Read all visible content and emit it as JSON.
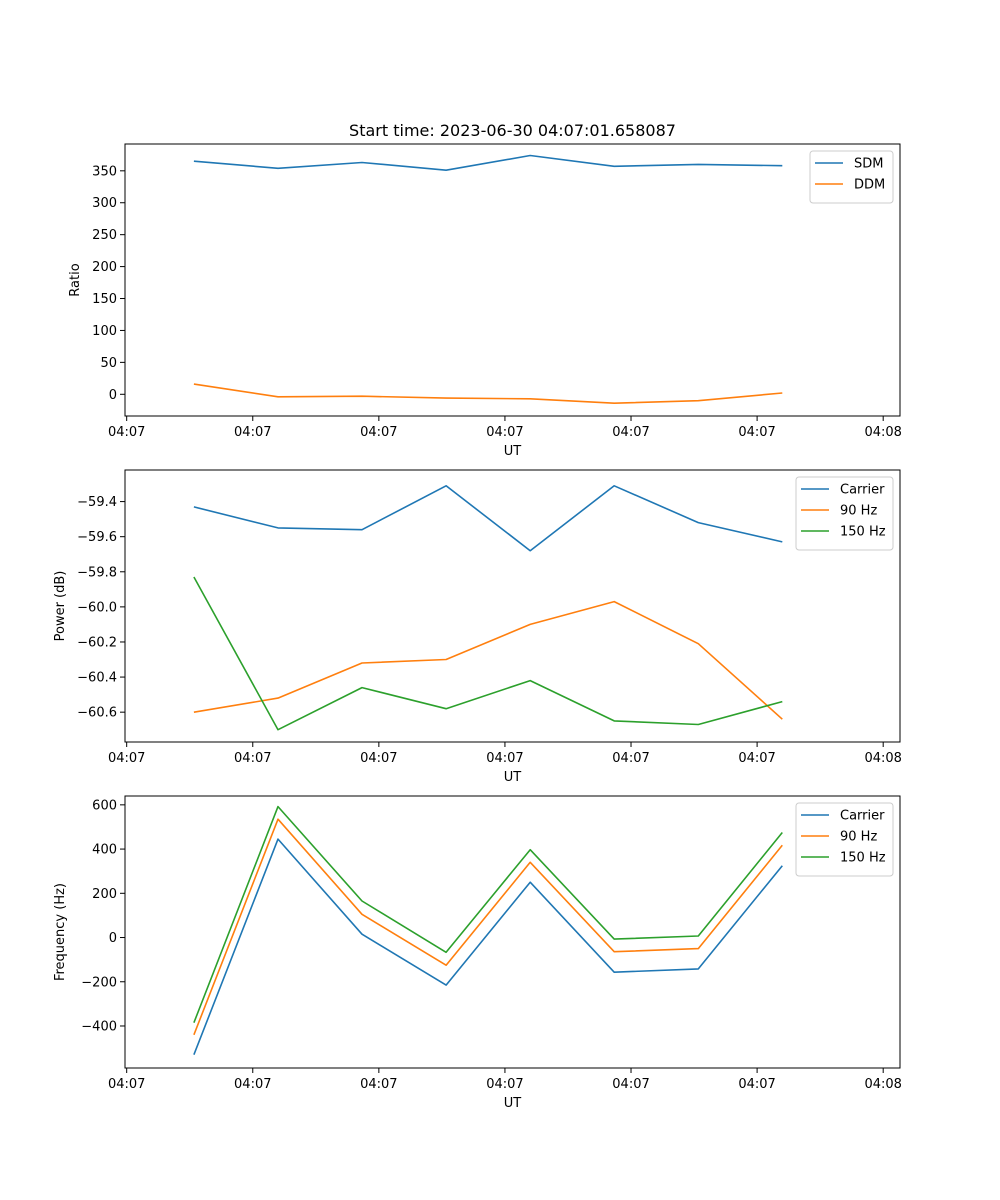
{
  "figure_title": "Start time: 2023-06-30 04:07:01.658087",
  "chart_data": [
    {
      "type": "line",
      "id": "ratio",
      "title": "Start time: 2023-06-30 04:07:01.658087",
      "xlabel": "UT",
      "ylabel": "Ratio",
      "x": [
        1,
        2,
        3,
        4,
        5,
        6,
        7,
        8
      ],
      "xlim": [
        0.18,
        9.4
      ],
      "xtick_positions": [
        0.2,
        1.7,
        3.2,
        4.7,
        6.2,
        7.7,
        9.2
      ],
      "xtick_labels": [
        "04:07",
        "04:07",
        "04:07",
        "04:07",
        "04:07",
        "04:07",
        "04:08"
      ],
      "ylim": [
        -34,
        392
      ],
      "yticks": [
        0,
        50,
        100,
        150,
        200,
        250,
        300,
        350
      ],
      "ytick_labels": [
        "0",
        "50",
        "100",
        "150",
        "200",
        "250",
        "300",
        "350"
      ],
      "legend_position": "top-right",
      "series": [
        {
          "name": "SDM",
          "color": "#1f77b4",
          "values": [
            365,
            354,
            363,
            351,
            374,
            357,
            360,
            358
          ]
        },
        {
          "name": "DDM",
          "color": "#ff7f0e",
          "values": [
            16,
            -4,
            -3,
            -6,
            -7,
            -14,
            -10,
            2
          ]
        }
      ]
    },
    {
      "type": "line",
      "id": "power",
      "title": "",
      "xlabel": "UT",
      "ylabel": "Power (dB)",
      "x": [
        1,
        2,
        3,
        4,
        5,
        6,
        7,
        8
      ],
      "xlim": [
        0.18,
        9.4
      ],
      "xtick_positions": [
        0.2,
        1.7,
        3.2,
        4.7,
        6.2,
        7.7,
        9.2
      ],
      "xtick_labels": [
        "04:07",
        "04:07",
        "04:07",
        "04:07",
        "04:07",
        "04:07",
        "04:08"
      ],
      "ylim": [
        -60.77,
        -59.22
      ],
      "yticks": [
        -60.6,
        -60.4,
        -60.2,
        -60.0,
        -59.8,
        -59.6,
        -59.4
      ],
      "ytick_labels": [
        "−60.6",
        "−60.4",
        "−60.2",
        "−60.0",
        "−59.8",
        "−59.6",
        "−59.4"
      ],
      "legend_position": "top-right",
      "series": [
        {
          "name": "Carrier",
          "color": "#1f77b4",
          "values": [
            -59.43,
            -59.55,
            -59.56,
            -59.31,
            -59.68,
            -59.31,
            -59.52,
            -59.63
          ]
        },
        {
          "name": "90 Hz",
          "color": "#ff7f0e",
          "values": [
            -60.6,
            -60.52,
            -60.32,
            -60.3,
            -60.1,
            -59.97,
            -60.21,
            -60.64
          ]
        },
        {
          "name": "150 Hz",
          "color": "#2ca02c",
          "values": [
            -59.83,
            -60.7,
            -60.46,
            -60.58,
            -60.42,
            -60.65,
            -60.67,
            -60.54
          ]
        }
      ]
    },
    {
      "type": "line",
      "id": "frequency",
      "title": "",
      "xlabel": "UT",
      "ylabel": "Frequency (Hz)",
      "x": [
        1,
        2,
        3,
        4,
        5,
        6,
        7,
        8
      ],
      "xlim": [
        0.18,
        9.4
      ],
      "xtick_positions": [
        0.2,
        1.7,
        3.2,
        4.7,
        6.2,
        7.7,
        9.2
      ],
      "xtick_labels": [
        "04:07",
        "04:07",
        "04:07",
        "04:07",
        "04:07",
        "04:07",
        "04:08"
      ],
      "ylim": [
        -590,
        640
      ],
      "yticks": [
        -400,
        -200,
        0,
        200,
        400,
        600
      ],
      "ytick_labels": [
        "−400",
        "−200",
        "0",
        "200",
        "400",
        "600"
      ],
      "legend_position": "top-right",
      "series": [
        {
          "name": "Carrier",
          "color": "#1f77b4",
          "values": [
            -530,
            445,
            15,
            -215,
            250,
            -157,
            -142,
            325
          ]
        },
        {
          "name": "90 Hz",
          "color": "#ff7f0e",
          "values": [
            -440,
            535,
            105,
            -125,
            340,
            -64,
            -50,
            417
          ]
        },
        {
          "name": "150 Hz",
          "color": "#2ca02c",
          "values": [
            -385,
            592,
            165,
            -67,
            397,
            -7,
            7,
            475
          ]
        }
      ]
    }
  ]
}
